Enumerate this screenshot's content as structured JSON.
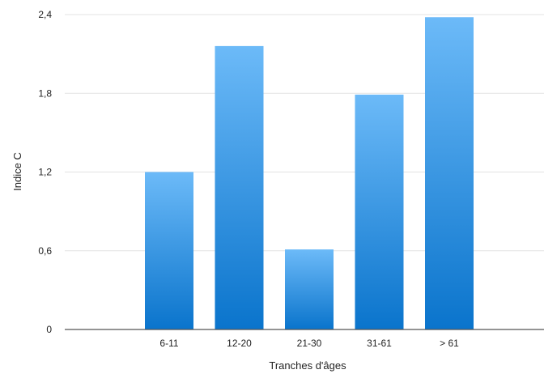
{
  "chart_data": {
    "type": "bar",
    "categories": [
      "6-11",
      "12-20",
      "21-30",
      "31-61",
      "> 61"
    ],
    "values": [
      1.2,
      2.16,
      0.61,
      1.79,
      2.38
    ],
    "title": "",
    "xlabel": "Tranches d'âges",
    "ylabel": "Indice C",
    "ylim": [
      0,
      2.4
    ],
    "yticks": [
      "0",
      "0,6",
      "1,2",
      "1,8",
      "2,4"
    ],
    "ytick_values": [
      0,
      0.6,
      1.2,
      1.8,
      2.4
    ],
    "grid": true,
    "legend": "none",
    "colors": {
      "bar_top": "#6cbaf8",
      "bar_bottom": "#0a74cc",
      "grid": "#e3e3e3",
      "axis": "#555555"
    }
  }
}
